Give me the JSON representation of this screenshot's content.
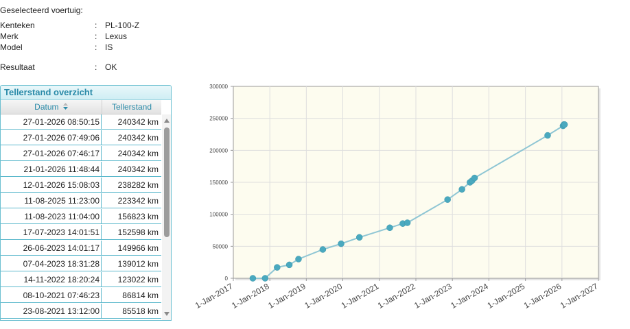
{
  "vehicle": {
    "title": "Geselecteerd voertuig:",
    "fields": [
      {
        "label": "Kenteken",
        "sep": ":",
        "value": "PL-100-Z"
      },
      {
        "label": "Merk",
        "sep": ":",
        "value": "Lexus"
      },
      {
        "label": "Model",
        "sep": ":",
        "value": "IS"
      },
      {
        "label": "Resultaat",
        "sep": ":",
        "value": "OK"
      }
    ]
  },
  "table": {
    "title": "Tellerstand overzicht",
    "col_date": "Datum",
    "col_value": "Tellerstand",
    "rows": [
      {
        "date": "27-01-2026 08:50:15",
        "value": "240342 km"
      },
      {
        "date": "27-01-2026 07:49:06",
        "value": "240342 km"
      },
      {
        "date": "27-01-2026 07:46:17",
        "value": "240342 km"
      },
      {
        "date": "21-01-2026 11:48:44",
        "value": "240342 km"
      },
      {
        "date": "12-01-2026 15:08:03",
        "value": "238282 km"
      },
      {
        "date": "11-08-2025 11:23:00",
        "value": "223342 km"
      },
      {
        "date": "11-08-2023 11:04:00",
        "value": "156823 km"
      },
      {
        "date": "17-07-2023 14:01:51",
        "value": "152598 km"
      },
      {
        "date": "26-06-2023 14:01:17",
        "value": "149966 km"
      },
      {
        "date": "07-04-2023 18:31:28",
        "value": "139012 km"
      },
      {
        "date": "14-11-2022 18:20:24",
        "value": "123022 km"
      },
      {
        "date": "08-10-2021 07:46:23",
        "value": "86814 km"
      },
      {
        "date": "23-08-2021 13:12:00",
        "value": "85518 km"
      }
    ]
  },
  "colors": {
    "accent": "#2a8aa8",
    "line": "#8fc6d4",
    "point": "#4aa9bf",
    "plot_bg": "#fdfcef"
  },
  "chart_data": {
    "type": "line",
    "title": "",
    "xlabel": "",
    "ylabel": "",
    "ylim": [
      0,
      300000
    ],
    "yticks": [
      "0",
      "50000",
      "100000",
      "150000",
      "200000",
      "250000",
      "300000"
    ],
    "xticks": [
      "1-Jan-2017",
      "1-Jan-2018",
      "1-Jan-2019",
      "1-Jan-2020",
      "1-Jan-2021",
      "1-Jan-2022",
      "1-Jan-2023",
      "1-Jan-2024",
      "1-Jan-2025",
      "1-Jan-2026",
      "1-Jan-2027"
    ],
    "grid": true,
    "series": [
      {
        "x": [
          "2017-07-15",
          "2017-11-15",
          "2018-03-15",
          "2018-07-15",
          "2018-10-15",
          "2019-06-15",
          "2019-12-15",
          "2020-06-15",
          "2021-04-15",
          "2021-08-23",
          "2021-10-08",
          "2022-11-14",
          "2023-04-07",
          "2023-06-26",
          "2023-07-17",
          "2023-08-11",
          "2025-08-11",
          "2026-01-12",
          "2026-01-21",
          "2026-01-27"
        ],
        "y": [
          0,
          0,
          17000,
          21000,
          30000,
          45000,
          54000,
          64000,
          79000,
          85518,
          86814,
          123022,
          139012,
          149966,
          152598,
          156823,
          223342,
          238282,
          240342,
          240342
        ]
      }
    ]
  }
}
